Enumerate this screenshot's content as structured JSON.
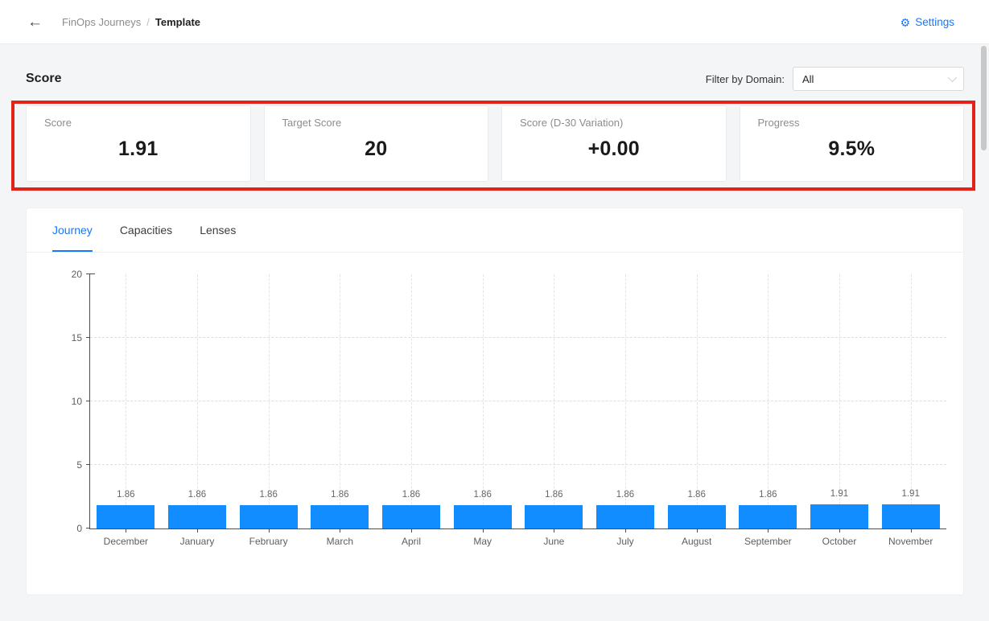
{
  "header": {
    "back_icon": "←",
    "breadcrumb": {
      "parent": "FinOps Journeys",
      "separator": "/",
      "current": "Template"
    },
    "settings": {
      "icon": "⚙",
      "label": "Settings"
    },
    "accent_color": "#1677ff"
  },
  "score_section": {
    "title": "Score",
    "filter_label": "Filter by Domain:",
    "filter_value": "All"
  },
  "annotation": {
    "color": "#e32219"
  },
  "cards": [
    {
      "label": "Score",
      "value": "1.91"
    },
    {
      "label": "Target Score",
      "value": "20"
    },
    {
      "label": "Score (D-30 Variation)",
      "value": "+0.00"
    },
    {
      "label": "Progress",
      "value": "9.5%"
    }
  ],
  "tabs": [
    {
      "label": "Journey",
      "active": true
    },
    {
      "label": "Capacities",
      "active": false
    },
    {
      "label": "Lenses",
      "active": false
    }
  ],
  "chart_data": {
    "type": "bar",
    "categories": [
      "December",
      "January",
      "February",
      "March",
      "April",
      "May",
      "June",
      "July",
      "August",
      "September",
      "October",
      "November"
    ],
    "values": [
      1.86,
      1.86,
      1.86,
      1.86,
      1.86,
      1.86,
      1.86,
      1.86,
      1.86,
      1.86,
      1.91,
      1.91
    ],
    "value_labels": [
      "1.86",
      "1.86",
      "1.86",
      "1.86",
      "1.86",
      "1.86",
      "1.86",
      "1.86",
      "1.86",
      "1.86",
      "1.91",
      "1.91"
    ],
    "title": "",
    "xlabel": "",
    "ylabel": "",
    "ylim": [
      0,
      20
    ],
    "yticks": [
      0,
      5,
      10,
      15,
      20
    ],
    "grid": "dashed",
    "legend": "none",
    "bar_color": "#118DFF"
  }
}
